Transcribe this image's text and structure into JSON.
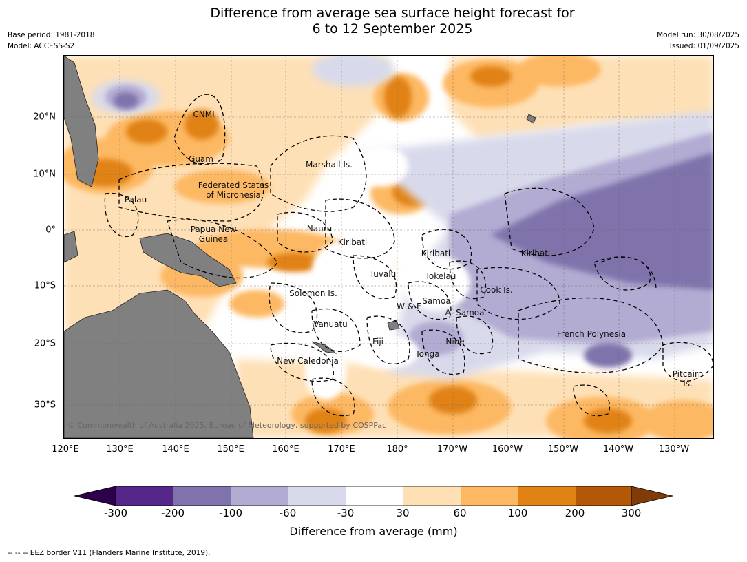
{
  "title_line1": "Difference from average sea surface height forecast for",
  "title_line2": "6 to 12 September 2025",
  "meta_left": {
    "base_period": "Base period: 1981-2018",
    "model": "Model: ACCESS-S2"
  },
  "meta_right": {
    "model_run": "Model run: 30/08/2025",
    "issued": "Issued: 01/09/2025"
  },
  "copyright": "© Commonwealth of Australia 2025, Bureau of Meteorology, supported by COSPPac",
  "lat_labels": [
    "20°N",
    "10°N",
    "0°",
    "10°S",
    "20°S",
    "30°S"
  ],
  "lon_labels": [
    "120°E",
    "130°E",
    "140°E",
    "150°E",
    "160°E",
    "170°E",
    "180°",
    "170°W",
    "160°W",
    "150°W",
    "140°W",
    "130°W"
  ],
  "places": [
    {
      "name": "CNMI"
    },
    {
      "name": "Guam"
    },
    {
      "name": "Marshall Is."
    },
    {
      "name": "Federated States\nof Micronesia"
    },
    {
      "name": "Palau"
    },
    {
      "name": "Papua New\nGuinea"
    },
    {
      "name": "Nauru"
    },
    {
      "name": "Kiribati"
    },
    {
      "name": "Kiribati"
    },
    {
      "name": "Kiribati"
    },
    {
      "name": "Tuvalu"
    },
    {
      "name": "Tokelau"
    },
    {
      "name": "Cook Is."
    },
    {
      "name": "Solomon Is."
    },
    {
      "name": "Samoa"
    },
    {
      "name": "W & F"
    },
    {
      "name": "A. Samoa"
    },
    {
      "name": "Vanuatu"
    },
    {
      "name": "Fiji"
    },
    {
      "name": "Niue"
    },
    {
      "name": "Tonga"
    },
    {
      "name": "French Polynesia"
    },
    {
      "name": "New Caledonia"
    },
    {
      "name": "Pitcairn\nIs."
    }
  ],
  "colorbar": {
    "title": "Difference from average (mm)",
    "ticks": [
      "-300",
      "-200",
      "-100",
      "-60",
      "-30",
      "30",
      "60",
      "100",
      "200",
      "300"
    ],
    "colors": {
      "below_min": "#2d004b",
      "b1": "#542788",
      "b2": "#8073ac",
      "b3": "#b2abd2",
      "b4": "#d8daeb",
      "neutral": "#ffffff",
      "o1": "#fee0b6",
      "o2": "#fdb863",
      "o3": "#e08214",
      "o4": "#b35806",
      "above_max": "#7f3b08"
    }
  },
  "footnote": "--  --  -- EEZ border V11 (Flanders Marine Institute, 2019)."
}
